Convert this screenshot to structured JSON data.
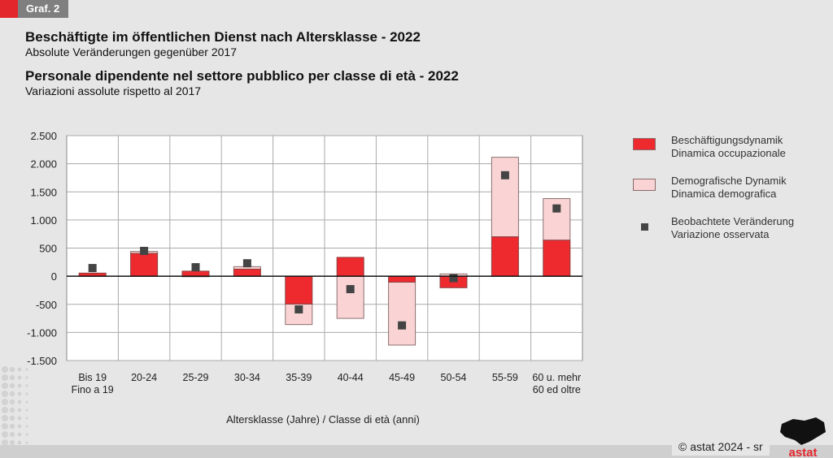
{
  "tag": "Graf. 2",
  "title_de": "Beschäftigte im öffentlichen Dienst nach Altersklasse - 2022",
  "subtitle_de": "Absolute Veränderungen gegenüber 2017",
  "title_it": "Personale dipendente nel settore pubblico per classe di età - 2022",
  "subtitle_it": "Variazioni assolute rispetto al 2017",
  "footer": "© astat 2024 - sr",
  "logo_text": "astat",
  "colors": {
    "employment": "#ee2a2f",
    "demographic": "#fad4d4",
    "observed": "#444444"
  },
  "chart_data": {
    "type": "bar",
    "stacked": true,
    "xlabel": "Altersklasse (Jahre) / Classe di età (anni)",
    "ylabel": "",
    "ylim": [
      -1500,
      2500
    ],
    "yticks": [
      2500,
      2000,
      1500,
      1000,
      500,
      0,
      -500,
      -1000,
      -1500
    ],
    "ytick_labels": [
      "2.500",
      "2.000",
      "1.500",
      "1.000",
      "500",
      "0",
      "-500",
      "-1.000",
      "-1.500"
    ],
    "grid": true,
    "legend_position": "right",
    "categories": [
      [
        "Bis 19",
        "Fino a 19"
      ],
      [
        "20-24"
      ],
      [
        "25-29"
      ],
      [
        "30-34"
      ],
      [
        "35-39"
      ],
      [
        "40-44"
      ],
      [
        "45-49"
      ],
      [
        "50-54"
      ],
      [
        "55-59"
      ],
      [
        "60 u. mehr",
        "60 ed oltre"
      ]
    ],
    "series": [
      {
        "name": "Beschäftigungsdynamik",
        "name_it": "Dinamica occupazionale",
        "kind": "bar",
        "values": [
          55,
          405,
          90,
          125,
          -495,
          335,
          -105,
          -205,
          700,
          640
        ]
      },
      {
        "name": "Demografische Dynamik",
        "name_it": "Dinamica demografica",
        "kind": "bar",
        "values": [
          0,
          35,
          -10,
          45,
          -365,
          -750,
          -1120,
          40,
          1415,
          740
        ]
      },
      {
        "name": "Beobachtete Veränderung",
        "name_it": "Variazione osservata",
        "kind": "marker",
        "values": [
          145,
          450,
          160,
          230,
          -590,
          -230,
          -875,
          -35,
          1795,
          1205
        ]
      }
    ]
  }
}
